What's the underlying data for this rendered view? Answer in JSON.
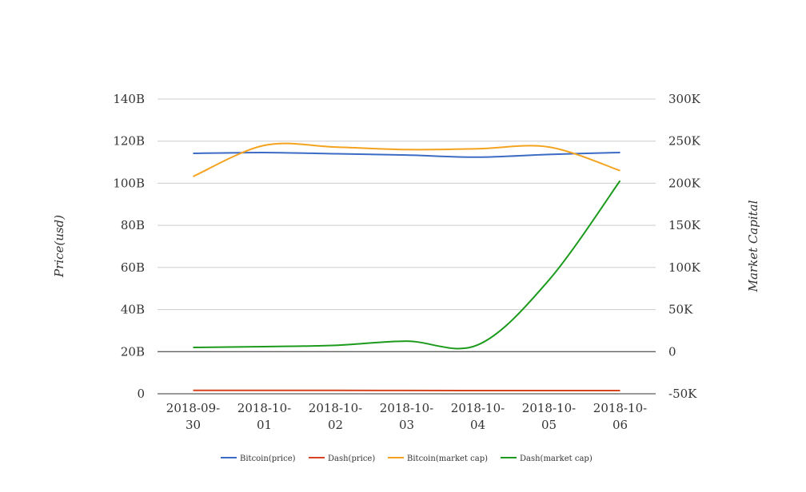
{
  "chart_data": {
    "type": "line",
    "categories": [
      "2018-09-30",
      "2018-10-01",
      "2018-10-02",
      "2018-10-03",
      "2018-10-04",
      "2018-10-05",
      "2018-10-06"
    ],
    "category_label_lines": [
      [
        "2018-09-",
        "30"
      ],
      [
        "2018-10-",
        "01"
      ],
      [
        "2018-10-",
        "02"
      ],
      [
        "2018-10-",
        "03"
      ],
      [
        "2018-10-",
        "04"
      ],
      [
        "2018-10-",
        "05"
      ],
      [
        "2018-10-",
        "06"
      ]
    ],
    "ylabel": "Price(usd)",
    "y2label": "Market Capital",
    "ylim": [
      0,
      140000000000
    ],
    "y2lim": [
      -50000,
      300000
    ],
    "yticks": [
      0,
      20000000000,
      40000000000,
      60000000000,
      80000000000,
      100000000000,
      120000000000,
      140000000000
    ],
    "ytick_labels": [
      "0",
      "20B",
      "40B",
      "60B",
      "80B",
      "100B",
      "120B",
      "140B"
    ],
    "y2ticks": [
      -50000,
      0,
      50000,
      100000,
      150000,
      200000,
      250000,
      300000
    ],
    "y2tick_labels": [
      "-50K",
      "0",
      "50K",
      "100K",
      "150K",
      "200K",
      "250K",
      "300K"
    ],
    "grid": true,
    "legend_position": "bottom",
    "series": [
      {
        "name": "Bitcoin(price)",
        "axis": "left",
        "color": "#3b6bc4",
        "values": [
          114200000000,
          114600000000,
          114000000000,
          113400000000,
          112400000000,
          113700000000,
          114600000000
        ]
      },
      {
        "name": "Dash(price)",
        "axis": "left",
        "color": "#d6451f",
        "values": [
          1600000000,
          1600000000,
          1600000000,
          1550000000,
          1500000000,
          1500000000,
          1500000000
        ]
      },
      {
        "name": "Bitcoin(market cap)",
        "axis": "right",
        "color": "#f4a31f",
        "values": [
          208000,
          245000,
          243000,
          240000,
          241000,
          243000,
          215000
        ]
      },
      {
        "name": "Dash(market cap)",
        "axis": "right",
        "color": "#1c9a1c",
        "values": [
          5000,
          6000,
          7500,
          12500,
          8000,
          85000,
          203000
        ]
      }
    ]
  }
}
